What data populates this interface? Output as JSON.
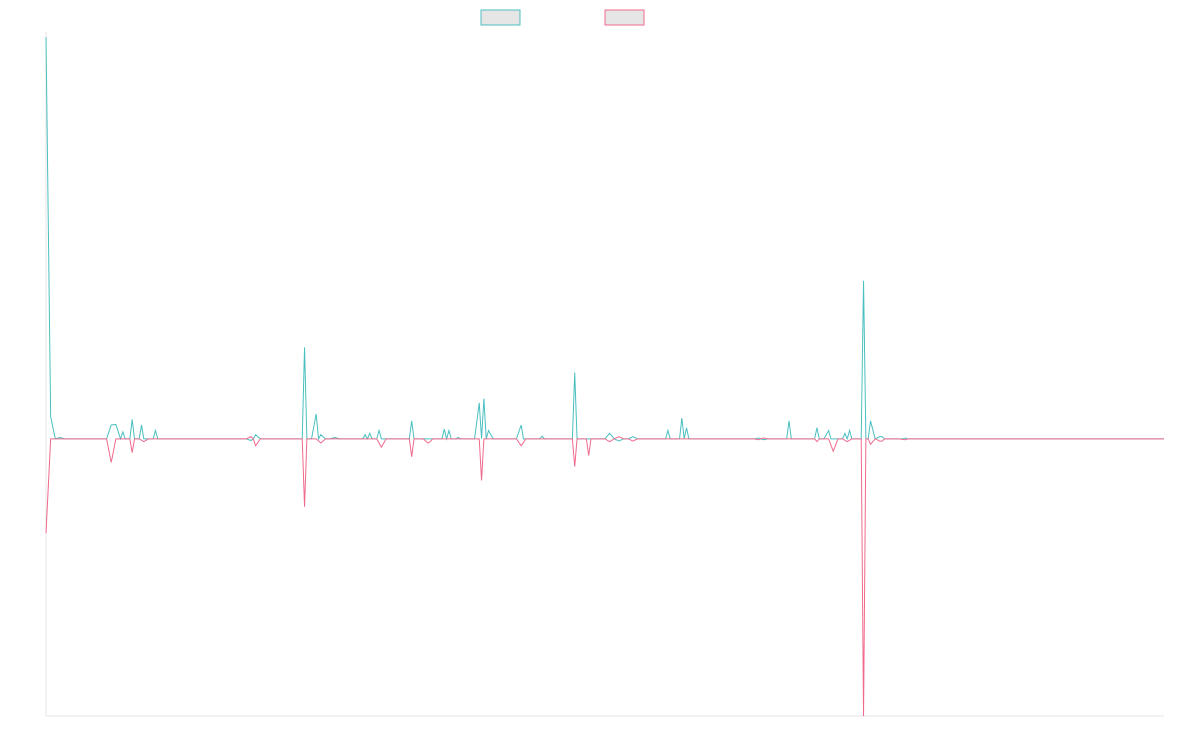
{
  "chart_data": {
    "type": "line",
    "title": "",
    "xlabel": "",
    "ylabel": "",
    "x_count": 240,
    "ylim": [
      -100,
      145
    ],
    "grid": false,
    "legend": {
      "placement": "top-center",
      "entries": [
        {
          "name": "",
          "color": "#4bbfc0",
          "fill": "#e6e6e6"
        },
        {
          "name": "",
          "color": "#f0698c",
          "fill": "#e6e6e6"
        }
      ]
    },
    "series": [
      {
        "name": "",
        "color": "#4bbfc0",
        "points": [
          [
            0,
            145
          ],
          [
            1,
            8
          ],
          [
            2,
            0
          ],
          [
            3,
            0.5
          ],
          [
            4,
            0
          ],
          [
            9,
            0
          ],
          [
            13,
            0
          ],
          [
            14,
            5
          ],
          [
            15,
            5.2
          ],
          [
            16,
            0
          ],
          [
            16.5,
            2.5
          ],
          [
            17,
            0
          ],
          [
            18,
            0
          ],
          [
            18.5,
            7
          ],
          [
            19,
            0
          ],
          [
            20,
            0
          ],
          [
            20.5,
            5
          ],
          [
            21,
            0
          ],
          [
            23,
            0
          ],
          [
            23.5,
            3
          ],
          [
            24,
            0
          ],
          [
            25,
            0
          ],
          [
            26,
            0
          ],
          [
            43,
            0
          ],
          [
            44,
            -0.6
          ],
          [
            44.5,
            0
          ],
          [
            45,
            1.5
          ],
          [
            46,
            0
          ],
          [
            55,
            0
          ],
          [
            55.5,
            33
          ],
          [
            56,
            0
          ],
          [
            57,
            0
          ],
          [
            58,
            9
          ],
          [
            58.5,
            0
          ],
          [
            59,
            1.5
          ],
          [
            60,
            0
          ],
          [
            61,
            0
          ],
          [
            62,
            0.5
          ],
          [
            63,
            0
          ],
          [
            68,
            0
          ],
          [
            68.5,
            1.5
          ],
          [
            69,
            0
          ],
          [
            69.5,
            2
          ],
          [
            70,
            0
          ],
          [
            71,
            0
          ],
          [
            71.5,
            3
          ],
          [
            72,
            0
          ],
          [
            74,
            0
          ],
          [
            78,
            0
          ],
          [
            78.5,
            6.5
          ],
          [
            79,
            0
          ],
          [
            80,
            0
          ],
          [
            81,
            0
          ],
          [
            85,
            0
          ],
          [
            85.5,
            3.5
          ],
          [
            86,
            0
          ],
          [
            86.5,
            3
          ],
          [
            87,
            0
          ],
          [
            88,
            0
          ],
          [
            88.5,
            0.5
          ],
          [
            89,
            0
          ],
          [
            92,
            0
          ],
          [
            93,
            13
          ],
          [
            93.5,
            0
          ],
          [
            94,
            14.5
          ],
          [
            94.5,
            0
          ],
          [
            95,
            3
          ],
          [
            96,
            0
          ],
          [
            101,
            0
          ],
          [
            102,
            5
          ],
          [
            102.5,
            0
          ],
          [
            103,
            0
          ],
          [
            106,
            0
          ],
          [
            106.5,
            1
          ],
          [
            107,
            0
          ],
          [
            113,
            0
          ],
          [
            113.5,
            24
          ],
          [
            114,
            0
          ],
          [
            120,
            0
          ],
          [
            121,
            2
          ],
          [
            122,
            0
          ],
          [
            123,
            -0.8
          ],
          [
            124,
            0
          ],
          [
            125,
            0
          ],
          [
            126,
            0.8
          ],
          [
            127,
            0
          ],
          [
            133,
            0
          ],
          [
            133.5,
            3
          ],
          [
            134,
            0
          ],
          [
            136,
            0
          ],
          [
            136.5,
            7.5
          ],
          [
            137,
            0
          ],
          [
            137.5,
            4
          ],
          [
            138,
            0
          ],
          [
            152,
            0
          ],
          [
            153,
            0.3
          ],
          [
            153.5,
            0
          ],
          [
            154,
            -0.3
          ],
          [
            155,
            0
          ],
          [
            159,
            0
          ],
          [
            159.5,
            6.5
          ],
          [
            160,
            0
          ],
          [
            165,
            0
          ],
          [
            165.5,
            4
          ],
          [
            166,
            0
          ],
          [
            167,
            0
          ],
          [
            168,
            3
          ],
          [
            168.5,
            0
          ],
          [
            171,
            0
          ],
          [
            171.5,
            2
          ],
          [
            172,
            0
          ],
          [
            172.5,
            3
          ],
          [
            173,
            0
          ],
          [
            178,
            0
          ],
          [
            179,
            0.8
          ],
          [
            179.5,
            0.8
          ],
          [
            180,
            0
          ],
          [
            184,
            0
          ],
          [
            175,
            0
          ],
          [
            175.5,
            57
          ],
          [
            176,
            0
          ],
          [
            176.5,
            0
          ],
          [
            177,
            6.5
          ],
          [
            178,
            0
          ],
          [
            183,
            0
          ],
          [
            184.5,
            0.3
          ],
          [
            185,
            0
          ],
          [
            240,
            0
          ]
        ]
      },
      {
        "name": "",
        "color": "#f0698c",
        "points": [
          [
            0,
            -34
          ],
          [
            1,
            0
          ],
          [
            13,
            0
          ],
          [
            14,
            -8.5
          ],
          [
            15,
            0
          ],
          [
            18,
            0
          ],
          [
            18.5,
            -5
          ],
          [
            19,
            0
          ],
          [
            20,
            0
          ],
          [
            21,
            -1
          ],
          [
            22,
            0
          ],
          [
            43,
            0
          ],
          [
            44,
            0.8
          ],
          [
            44.5,
            0
          ],
          [
            45,
            -2.5
          ],
          [
            46,
            0
          ],
          [
            55,
            0
          ],
          [
            55.5,
            -24.5
          ],
          [
            56,
            0
          ],
          [
            57,
            0
          ],
          [
            58,
            0
          ],
          [
            59,
            -1.5
          ],
          [
            60,
            0
          ],
          [
            71,
            0
          ],
          [
            72,
            -3
          ],
          [
            73,
            0
          ],
          [
            78,
            0
          ],
          [
            78.5,
            -6.5
          ],
          [
            79,
            0
          ],
          [
            81,
            0
          ],
          [
            82,
            -1.5
          ],
          [
            82.5,
            -1
          ],
          [
            83,
            0
          ],
          [
            85,
            0
          ],
          [
            86,
            0
          ],
          [
            93,
            0
          ],
          [
            93.5,
            -15
          ],
          [
            94,
            0
          ],
          [
            101,
            0
          ],
          [
            102,
            -2.5
          ],
          [
            103,
            0
          ],
          [
            113,
            0
          ],
          [
            113.5,
            -10
          ],
          [
            114,
            0
          ],
          [
            116,
            0
          ],
          [
            116.5,
            -6
          ],
          [
            117,
            0
          ],
          [
            120,
            0
          ],
          [
            121,
            -1
          ],
          [
            122,
            0
          ],
          [
            123,
            0.8
          ],
          [
            124,
            0
          ],
          [
            125,
            0
          ],
          [
            126,
            -0.8
          ],
          [
            127,
            0
          ],
          [
            152,
            0
          ],
          [
            153,
            -0.3
          ],
          [
            153.5,
            0
          ],
          [
            154,
            0.3
          ],
          [
            155,
            0
          ],
          [
            165,
            0
          ],
          [
            165.5,
            -1
          ],
          [
            166,
            0
          ],
          [
            168,
            0
          ],
          [
            169,
            -4.5
          ],
          [
            170,
            0
          ],
          [
            171,
            0
          ],
          [
            172,
            -1
          ],
          [
            173,
            0
          ],
          [
            178,
            0
          ],
          [
            179,
            -0.8
          ],
          [
            179.5,
            -0.8
          ],
          [
            180,
            0
          ],
          [
            175,
            0
          ],
          [
            175.5,
            -100
          ],
          [
            176,
            0
          ],
          [
            176.5,
            0
          ],
          [
            177,
            -2
          ],
          [
            178,
            0
          ],
          [
            183,
            0
          ],
          [
            184.5,
            -0.3
          ],
          [
            185,
            0
          ],
          [
            240,
            0
          ]
        ]
      }
    ]
  }
}
